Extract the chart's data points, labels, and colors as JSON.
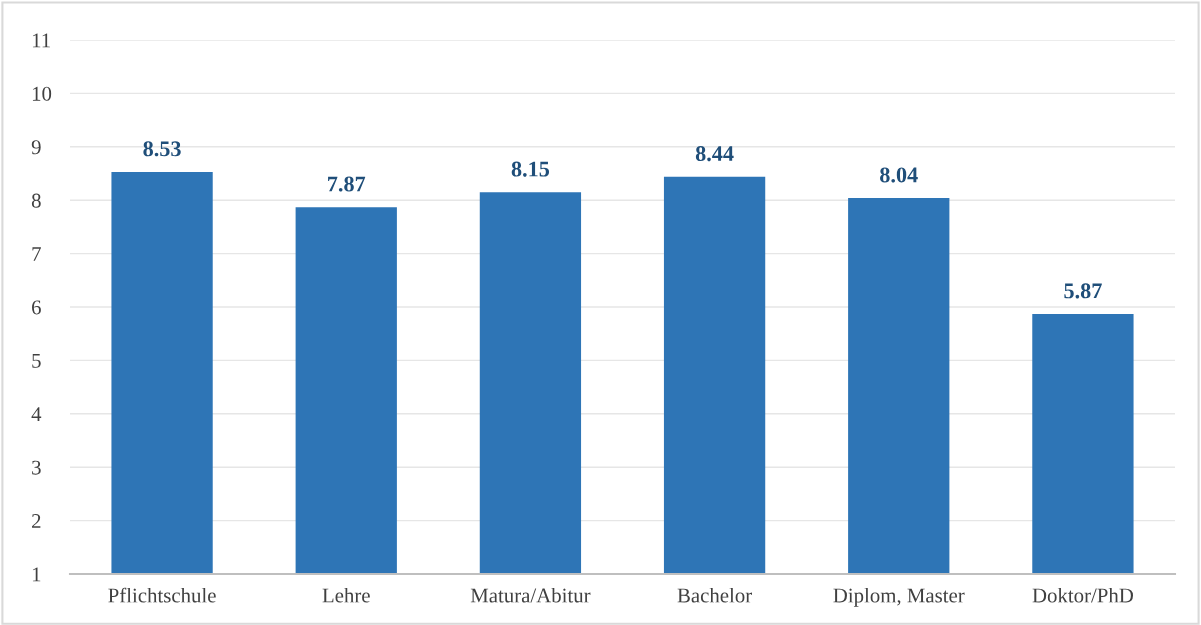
{
  "chart_data": {
    "type": "bar",
    "categories": [
      "Pflichtschule",
      "Lehre",
      "Matura/Abitur",
      "Bachelor",
      "Diplom, Master",
      "Doktor/PhD"
    ],
    "values": [
      8.53,
      7.87,
      8.15,
      8.44,
      8.04,
      5.87
    ],
    "color": "#2e75b6",
    "ylim": [
      1,
      11
    ],
    "yticks": [
      1,
      2,
      3,
      4,
      5,
      6,
      7,
      8,
      9,
      10,
      11
    ],
    "grid": "y",
    "data_labels": true,
    "legend": false
  }
}
